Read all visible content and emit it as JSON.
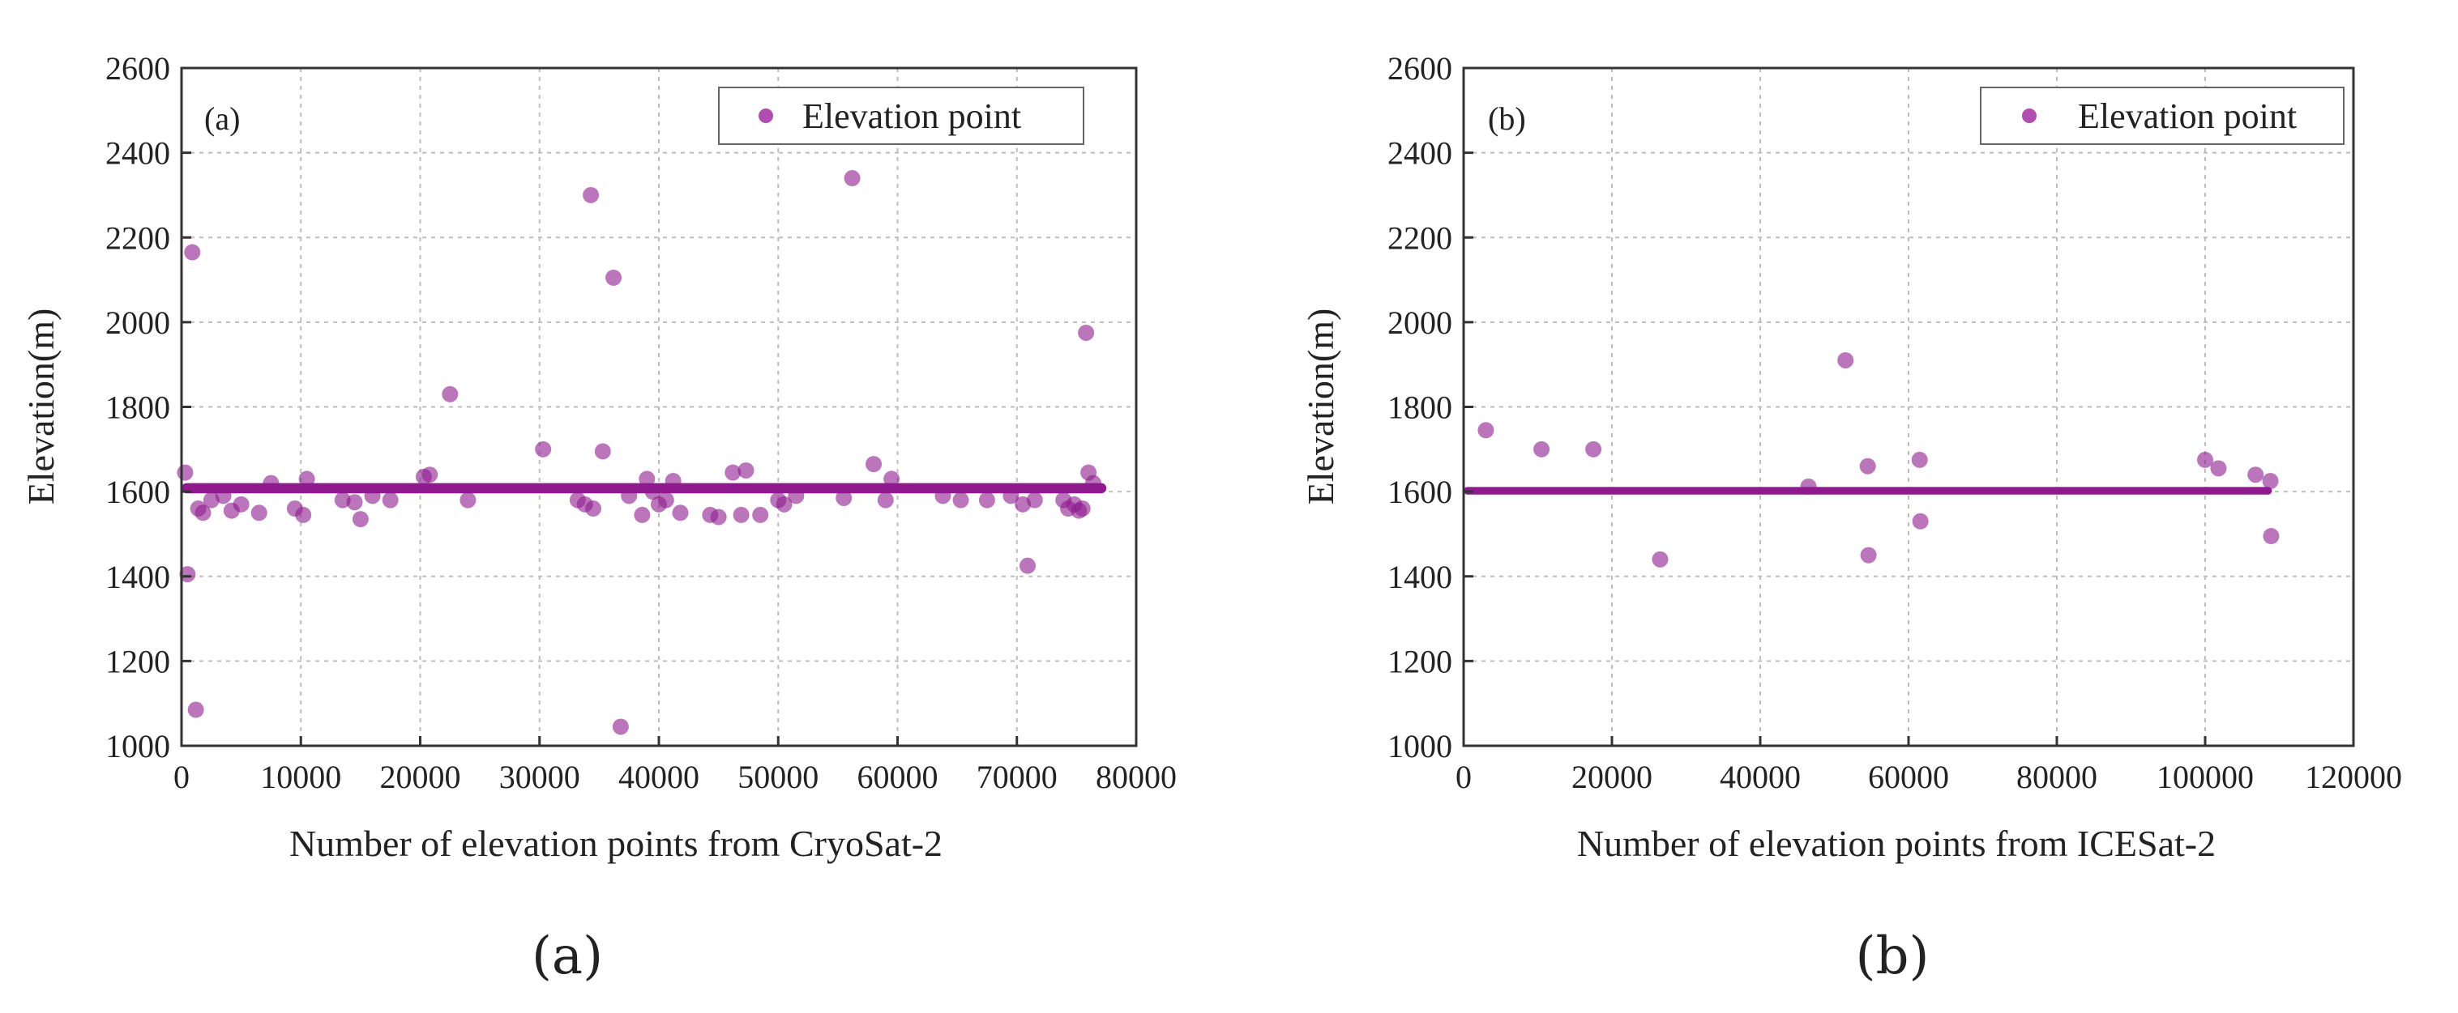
{
  "chart_data": [
    {
      "type": "scatter",
      "panel_tag": "(a)",
      "caption": "(a)",
      "xlabel": "Number of elevation points from CryoSat-2",
      "ylabel": "Elevation(m)",
      "xlim": [
        0,
        80000
      ],
      "ylim": [
        1000,
        2600
      ],
      "xticks": [
        0,
        10000,
        20000,
        30000,
        40000,
        50000,
        60000,
        70000,
        80000
      ],
      "yticks": [
        1000,
        1200,
        1400,
        1600,
        1800,
        2000,
        2200,
        2400,
        2600
      ],
      "grid": true,
      "legend": {
        "label": "Elevation point",
        "position": "top-right"
      },
      "band": {
        "x_range": [
          0,
          77500
        ],
        "y_center": 1608,
        "y_halfwidth": 12
      },
      "series": [
        {
          "name": "Elevation point",
          "color": "#8e1a8e",
          "points": [
            [
              300,
              1645
            ],
            [
              500,
              1405
            ],
            [
              900,
              2165
            ],
            [
              1200,
              1085
            ],
            [
              1400,
              1560
            ],
            [
              1800,
              1550
            ],
            [
              2500,
              1580
            ],
            [
              3500,
              1590
            ],
            [
              4200,
              1555
            ],
            [
              5000,
              1570
            ],
            [
              6500,
              1550
            ],
            [
              7500,
              1620
            ],
            [
              9500,
              1560
            ],
            [
              10200,
              1545
            ],
            [
              10500,
              1630
            ],
            [
              13500,
              1580
            ],
            [
              14500,
              1575
            ],
            [
              15000,
              1535
            ],
            [
              16000,
              1590
            ],
            [
              17500,
              1580
            ],
            [
              20300,
              1635
            ],
            [
              20800,
              1640
            ],
            [
              22500,
              1830
            ],
            [
              24000,
              1580
            ],
            [
              30300,
              1700
            ],
            [
              33200,
              1580
            ],
            [
              33800,
              1570
            ],
            [
              34300,
              2300
            ],
            [
              34500,
              1560
            ],
            [
              35300,
              1695
            ],
            [
              36200,
              2105
            ],
            [
              36800,
              1045
            ],
            [
              37500,
              1590
            ],
            [
              38600,
              1545
            ],
            [
              39000,
              1630
            ],
            [
              39500,
              1600
            ],
            [
              40000,
              1570
            ],
            [
              40600,
              1580
            ],
            [
              41200,
              1625
            ],
            [
              41800,
              1550
            ],
            [
              44300,
              1545
            ],
            [
              45000,
              1540
            ],
            [
              46200,
              1645
            ],
            [
              46900,
              1545
            ],
            [
              47300,
              1650
            ],
            [
              48500,
              1545
            ],
            [
              50000,
              1580
            ],
            [
              50500,
              1570
            ],
            [
              51500,
              1590
            ],
            [
              55500,
              1585
            ],
            [
              56200,
              2340
            ],
            [
              58000,
              1665
            ],
            [
              59000,
              1580
            ],
            [
              59500,
              1630
            ],
            [
              63800,
              1590
            ],
            [
              65300,
              1580
            ],
            [
              67500,
              1580
            ],
            [
              69500,
              1590
            ],
            [
              70500,
              1570
            ],
            [
              70900,
              1425
            ],
            [
              71500,
              1580
            ],
            [
              73900,
              1580
            ],
            [
              74300,
              1560
            ],
            [
              74800,
              1570
            ],
            [
              75200,
              1555
            ],
            [
              75500,
              1560
            ],
            [
              75800,
              1975
            ],
            [
              76000,
              1645
            ],
            [
              76400,
              1620
            ]
          ]
        }
      ]
    },
    {
      "type": "scatter",
      "panel_tag": "(b)",
      "caption": "(b)",
      "xlabel": "Number of  elevation points from ICESat-2",
      "ylabel": "Elevation(m)",
      "xlim": [
        0,
        120000
      ],
      "ylim": [
        1000,
        2600
      ],
      "xticks": [
        0,
        20000,
        40000,
        60000,
        80000,
        100000,
        120000
      ],
      "yticks": [
        1000,
        1200,
        1400,
        1600,
        1800,
        2000,
        2200,
        2400,
        2600
      ],
      "grid": true,
      "legend": {
        "label": "Elevation point",
        "position": "top-right"
      },
      "band": {
        "x_range": [
          0,
          109000
        ],
        "y_center": 1602,
        "y_halfwidth": 9
      },
      "series": [
        {
          "name": "Elevation point",
          "color": "#8e1a8e",
          "points": [
            [
              3000,
              1745
            ],
            [
              10500,
              1700
            ],
            [
              17500,
              1700
            ],
            [
              26500,
              1440
            ],
            [
              46500,
              1612
            ],
            [
              51500,
              1910
            ],
            [
              54500,
              1660
            ],
            [
              54600,
              1450
            ],
            [
              61500,
              1675
            ],
            [
              61600,
              1530
            ],
            [
              100000,
              1675
            ],
            [
              101800,
              1655
            ],
            [
              106800,
              1640
            ],
            [
              108800,
              1625
            ],
            [
              108900,
              1495
            ]
          ]
        }
      ]
    }
  ]
}
